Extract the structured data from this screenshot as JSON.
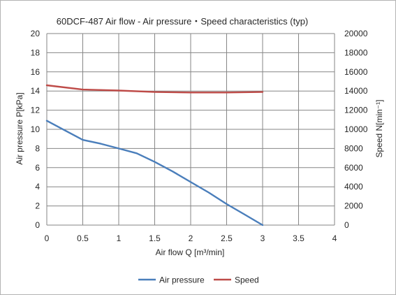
{
  "chart_data": {
    "type": "line",
    "title": "60DCF-487  Air flow - Air pressure・Speed characteristics (typ)",
    "xlabel": "Air flow  Q [m³/min]",
    "ylabel": "Air pressure  P[kPa]",
    "y2label": "Speed  N[min⁻¹]",
    "xlim": [
      0,
      4
    ],
    "ylim": [
      0,
      20
    ],
    "y2lim": [
      0,
      20000
    ],
    "x_ticks": [
      "0",
      "0.5",
      "1",
      "1.5",
      "2",
      "2.5",
      "3",
      "3.5",
      "4"
    ],
    "y_ticks": [
      "0",
      "2",
      "4",
      "6",
      "8",
      "10",
      "12",
      "14",
      "16",
      "18",
      "20"
    ],
    "y2_ticks": [
      "0",
      "2000",
      "4000",
      "6000",
      "8000",
      "10000",
      "12000",
      "14000",
      "16000",
      "18000",
      "20000"
    ],
    "grid": true,
    "legend_position": "bottom",
    "series": [
      {
        "name": "Air pressure",
        "axis": "left",
        "color": "#4a7ebb",
        "points": [
          [
            0,
            10.9
          ],
          [
            0.25,
            9.9
          ],
          [
            0.5,
            8.9
          ],
          [
            0.75,
            8.5
          ],
          [
            1.0,
            8.0
          ],
          [
            1.25,
            7.5
          ],
          [
            1.5,
            6.6
          ],
          [
            1.75,
            5.6
          ],
          [
            2.0,
            4.5
          ],
          [
            2.25,
            3.4
          ],
          [
            2.5,
            2.2
          ],
          [
            2.75,
            1.1
          ],
          [
            3.0,
            0.0
          ]
        ]
      },
      {
        "name": "Speed",
        "axis": "right",
        "color": "#be4b48",
        "points": [
          [
            0,
            14600
          ],
          [
            0.5,
            14150
          ],
          [
            1.0,
            14050
          ],
          [
            1.5,
            13900
          ],
          [
            2.0,
            13850
          ],
          [
            2.5,
            13850
          ],
          [
            3.0,
            13900
          ]
        ]
      }
    ]
  }
}
